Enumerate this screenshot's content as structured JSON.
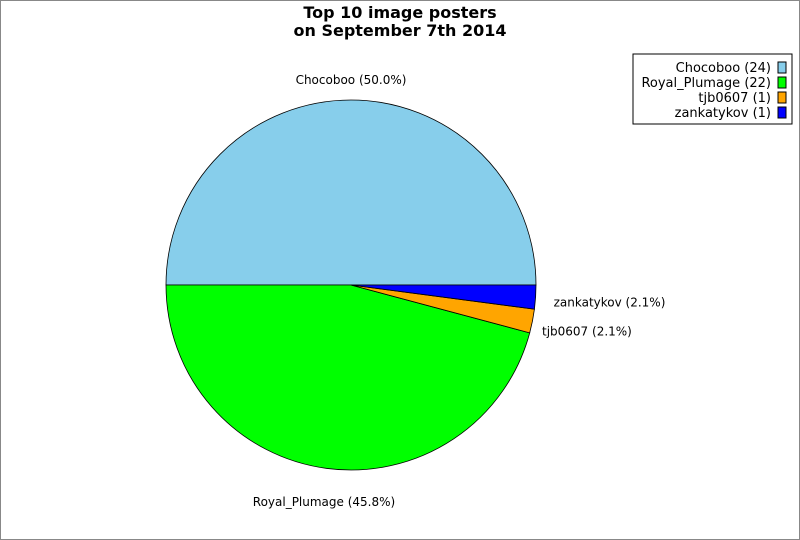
{
  "chart_data": {
    "type": "pie",
    "title": "Top 10 image posters",
    "subtitle": "on September 7th 2014",
    "slices": [
      {
        "name": "Chocoboo",
        "value": 24,
        "percent_label": "Chocoboo (50.0%)",
        "legend_label": "Chocoboo (24)",
        "color": "#87ceeb"
      },
      {
        "name": "Royal_Plumage",
        "value": 22,
        "percent_label": "Royal_Plumage (45.8%)",
        "legend_label": "Royal_Plumage (22)",
        "color": "#00ff00"
      },
      {
        "name": "tjb0607",
        "value": 1,
        "percent_label": "tjb0607 (2.1%)",
        "legend_label": "tjb0607 (1)",
        "color": "#ffa500"
      },
      {
        "name": "zankatykov",
        "value": 1,
        "percent_label": "zankatykov (2.1%)",
        "legend_label": "zankatykov (1)",
        "color": "#0000ff"
      }
    ],
    "legend_position": "top-right"
  }
}
